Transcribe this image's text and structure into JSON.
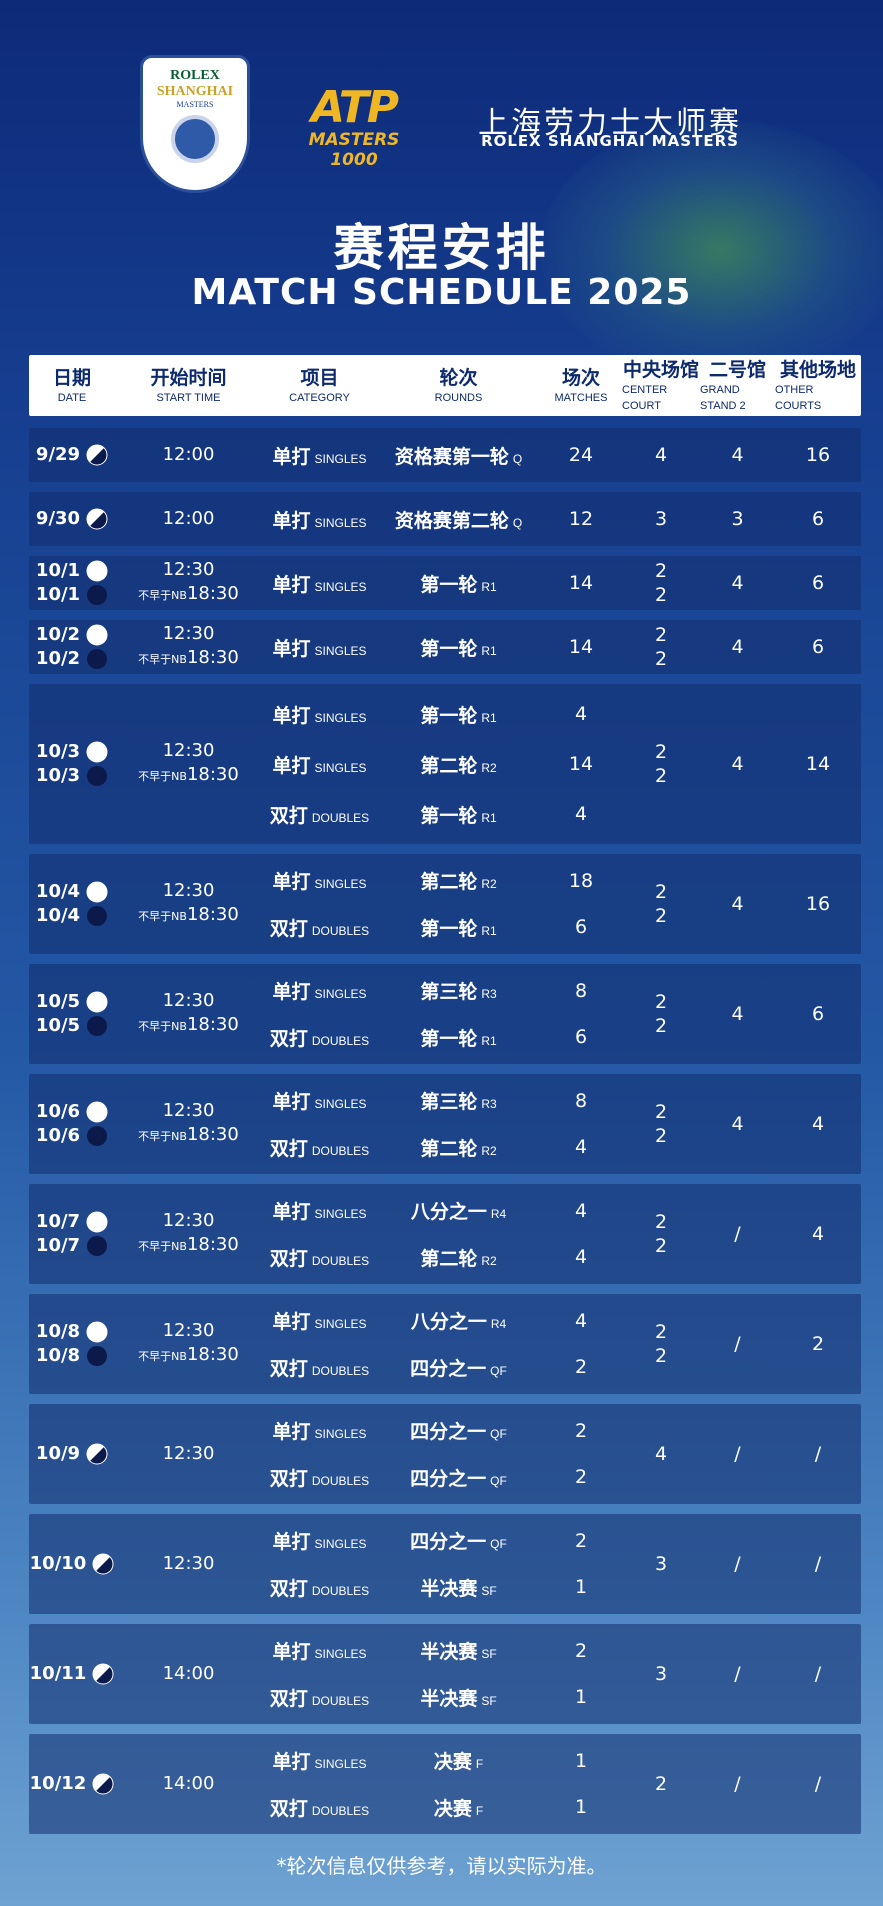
{
  "header": {
    "logo": {
      "line1": "ROLEX",
      "line2": "SHANGHAI",
      "line3": "MASTERS"
    },
    "atp": {
      "mark": "ATP",
      "sub": "MASTERS 1000"
    },
    "event_zh": "上海劳力士大师赛",
    "event_en": "ROLEX SHANGHAI MASTERS",
    "title_zh": "赛程安排",
    "title_en": "MATCH SCHEDULE 2025"
  },
  "table": {
    "columns": [
      {
        "zh": "日期",
        "en": "DATE"
      },
      {
        "zh": "开始时间",
        "en": "START TIME"
      },
      {
        "zh": "项目",
        "en": "CATEGORY"
      },
      {
        "zh": "轮次",
        "en": "ROUNDS"
      },
      {
        "zh": "场次",
        "en": "MATCHES"
      },
      {
        "zh": "中央场馆",
        "en": "CENTER COURT"
      },
      {
        "zh": "二号馆",
        "en": "GRAND STAND 2"
      },
      {
        "zh": "其他场地",
        "en": "OTHER COURTS"
      }
    ],
    "rows": [
      {
        "dates": [
          "9/29"
        ],
        "times": [
          {
            "text": "12:00"
          }
        ],
        "events": [
          {
            "cat_zh": "单打",
            "cat_en": "SINGLES",
            "round_zh": "资格赛第一轮",
            "round_en": "Q",
            "matches": 24
          }
        ],
        "center": [
          4
        ],
        "gs2": 4,
        "other": 16
      },
      {
        "dates": [
          "9/30"
        ],
        "times": [
          {
            "text": "12:00"
          }
        ],
        "events": [
          {
            "cat_zh": "单打",
            "cat_en": "SINGLES",
            "round_zh": "资格赛第二轮",
            "round_en": "Q",
            "matches": 12
          }
        ],
        "center": [
          3
        ],
        "gs2": 3,
        "other": 6
      },
      {
        "dates": [
          "10/1",
          "10/1"
        ],
        "times": [
          {
            "text": "12:30"
          },
          {
            "note": "不早于NB",
            "text": "18:30"
          }
        ],
        "events": [
          {
            "cat_zh": "单打",
            "cat_en": "SINGLES",
            "round_zh": "第一轮",
            "round_en": "R1",
            "matches": 14
          }
        ],
        "center": [
          2,
          2
        ],
        "gs2": 4,
        "other": 6
      },
      {
        "dates": [
          "10/2",
          "10/2"
        ],
        "times": [
          {
            "text": "12:30"
          },
          {
            "note": "不早于NB",
            "text": "18:30"
          }
        ],
        "events": [
          {
            "cat_zh": "单打",
            "cat_en": "SINGLES",
            "round_zh": "第一轮",
            "round_en": "R1",
            "matches": 14
          }
        ],
        "center": [
          2,
          2
        ],
        "gs2": 4,
        "other": 6
      },
      {
        "dates": [
          "10/3",
          "10/3"
        ],
        "times": [
          {
            "text": "12:30"
          },
          {
            "note": "不早于NB",
            "text": "18:30"
          }
        ],
        "events": [
          {
            "cat_zh": "单打",
            "cat_en": "SINGLES",
            "round_zh": "第一轮",
            "round_en": "R1",
            "matches": 4
          },
          {
            "cat_zh": "单打",
            "cat_en": "SINGLES",
            "round_zh": "第二轮",
            "round_en": "R2",
            "matches": 14
          },
          {
            "cat_zh": "双打",
            "cat_en": "DOUBLES",
            "round_zh": "第一轮",
            "round_en": "R1",
            "matches": 4
          }
        ],
        "center": [
          2,
          2
        ],
        "gs2": 4,
        "other": 14
      },
      {
        "dates": [
          "10/4",
          "10/4"
        ],
        "times": [
          {
            "text": "12:30"
          },
          {
            "note": "不早于NB",
            "text": "18:30"
          }
        ],
        "events": [
          {
            "cat_zh": "单打",
            "cat_en": "SINGLES",
            "round_zh": "第二轮",
            "round_en": "R2",
            "matches": 18
          },
          {
            "cat_zh": "双打",
            "cat_en": "DOUBLES",
            "round_zh": "第一轮",
            "round_en": "R1",
            "matches": 6
          }
        ],
        "center": [
          2,
          2
        ],
        "gs2": 4,
        "other": 16
      },
      {
        "dates": [
          "10/5",
          "10/5"
        ],
        "times": [
          {
            "text": "12:30"
          },
          {
            "note": "不早于NB",
            "text": "18:30"
          }
        ],
        "events": [
          {
            "cat_zh": "单打",
            "cat_en": "SINGLES",
            "round_zh": "第三轮",
            "round_en": "R3",
            "matches": 8
          },
          {
            "cat_zh": "双打",
            "cat_en": "DOUBLES",
            "round_zh": "第一轮",
            "round_en": "R1",
            "matches": 6
          }
        ],
        "center": [
          2,
          2
        ],
        "gs2": 4,
        "other": 6
      },
      {
        "dates": [
          "10/6",
          "10/6"
        ],
        "times": [
          {
            "text": "12:30"
          },
          {
            "note": "不早于NB",
            "text": "18:30"
          }
        ],
        "events": [
          {
            "cat_zh": "单打",
            "cat_en": "SINGLES",
            "round_zh": "第三轮",
            "round_en": "R3",
            "matches": 8
          },
          {
            "cat_zh": "双打",
            "cat_en": "DOUBLES",
            "round_zh": "第二轮",
            "round_en": "R2",
            "matches": 4
          }
        ],
        "center": [
          2,
          2
        ],
        "gs2": 4,
        "other": 4
      },
      {
        "dates": [
          "10/7",
          "10/7"
        ],
        "times": [
          {
            "text": "12:30"
          },
          {
            "note": "不早于NB",
            "text": "18:30"
          }
        ],
        "events": [
          {
            "cat_zh": "单打",
            "cat_en": "SINGLES",
            "round_zh": "八分之一",
            "round_en": "R4",
            "matches": 4
          },
          {
            "cat_zh": "双打",
            "cat_en": "DOUBLES",
            "round_zh": "第二轮",
            "round_en": "R2",
            "matches": 4
          }
        ],
        "center": [
          2,
          2
        ],
        "gs2": "/",
        "other": 4
      },
      {
        "dates": [
          "10/8",
          "10/8"
        ],
        "times": [
          {
            "text": "12:30"
          },
          {
            "note": "不早于NB",
            "text": "18:30"
          }
        ],
        "events": [
          {
            "cat_zh": "单打",
            "cat_en": "SINGLES",
            "round_zh": "八分之一",
            "round_en": "R4",
            "matches": 4
          },
          {
            "cat_zh": "双打",
            "cat_en": "DOUBLES",
            "round_zh": "四分之一",
            "round_en": "QF",
            "matches": 2
          }
        ],
        "center": [
          2,
          2
        ],
        "gs2": "/",
        "other": 2
      },
      {
        "dates": [
          "10/9"
        ],
        "times": [
          {
            "text": "12:30"
          }
        ],
        "events": [
          {
            "cat_zh": "单打",
            "cat_en": "SINGLES",
            "round_zh": "四分之一",
            "round_en": "QF",
            "matches": 2
          },
          {
            "cat_zh": "双打",
            "cat_en": "DOUBLES",
            "round_zh": "四分之一",
            "round_en": "QF",
            "matches": 2
          }
        ],
        "center": [
          4
        ],
        "gs2": "/",
        "other": "/"
      },
      {
        "dates": [
          "10/10"
        ],
        "times": [
          {
            "text": "12:30"
          }
        ],
        "events": [
          {
            "cat_zh": "单打",
            "cat_en": "SINGLES",
            "round_zh": "四分之一",
            "round_en": "QF",
            "matches": 2
          },
          {
            "cat_zh": "双打",
            "cat_en": "DOUBLES",
            "round_zh": "半决赛",
            "round_en": "SF",
            "matches": 1
          }
        ],
        "center": [
          3
        ],
        "gs2": "/",
        "other": "/"
      },
      {
        "dates": [
          "10/11"
        ],
        "times": [
          {
            "text": "14:00"
          }
        ],
        "events": [
          {
            "cat_zh": "单打",
            "cat_en": "SINGLES",
            "round_zh": "半决赛",
            "round_en": "SF",
            "matches": 2
          },
          {
            "cat_zh": "双打",
            "cat_en": "DOUBLES",
            "round_zh": "半决赛",
            "round_en": "SF",
            "matches": 1
          }
        ],
        "center": [
          3
        ],
        "gs2": "/",
        "other": "/"
      },
      {
        "dates": [
          "10/12"
        ],
        "times": [
          {
            "text": "14:00"
          }
        ],
        "events": [
          {
            "cat_zh": "单打",
            "cat_en": "SINGLES",
            "round_zh": "决赛",
            "round_en": "F",
            "matches": 1
          },
          {
            "cat_zh": "双打",
            "cat_en": "DOUBLES",
            "round_zh": "决赛",
            "round_en": "F",
            "matches": 1
          }
        ],
        "center": [
          2
        ],
        "gs2": "/",
        "other": "/"
      }
    ]
  },
  "footnote": "*轮次信息仅供参考，请以实际为准。"
}
